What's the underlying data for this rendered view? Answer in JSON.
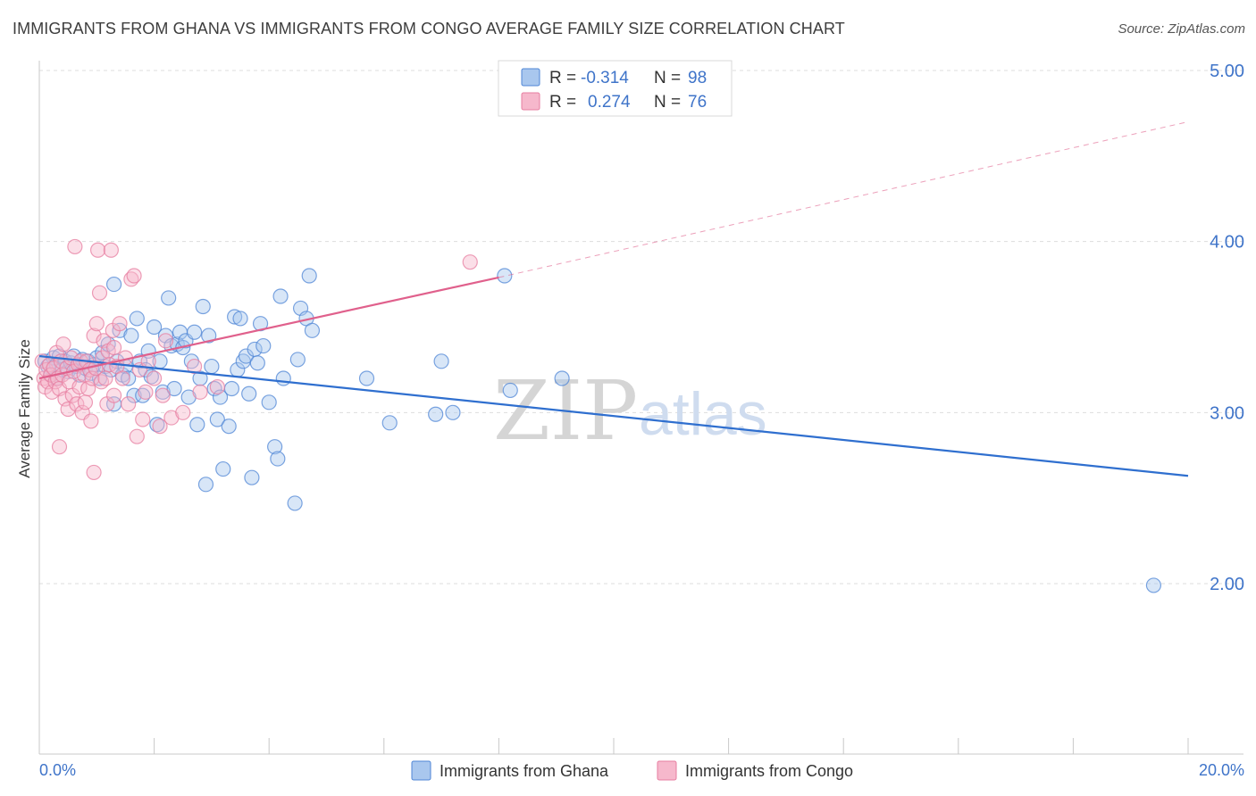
{
  "title": "IMMIGRANTS FROM GHANA VS IMMIGRANTS FROM CONGO AVERAGE FAMILY SIZE CORRELATION CHART",
  "source": "Source: ZipAtlas.com",
  "watermark": {
    "zip": "ZIP",
    "atlas": "atlas"
  },
  "legend_box": {
    "rows": [
      {
        "r_label": "R =",
        "r_value": "-0.314",
        "n_label": "N =",
        "n_value": "98"
      },
      {
        "r_label": "R =",
        "r_value": "0.274",
        "n_label": "N =",
        "n_value": "76"
      }
    ]
  },
  "colors": {
    "ghana_fill": "#a9c7ee",
    "ghana_stroke": "#4f86d6",
    "ghana_line": "#2f6fcf",
    "congo_fill": "#f6b8cc",
    "congo_stroke": "#e77ea0",
    "congo_line": "#e0608c",
    "axis_label": "#3f74c9",
    "grid": "#dddddd"
  },
  "chart_data": {
    "type": "scatter",
    "title": "IMMIGRANTS FROM GHANA VS IMMIGRANTS FROM CONGO AVERAGE FAMILY SIZE CORRELATION CHART",
    "xlabel": "",
    "ylabel": "Average Family Size",
    "xlim": [
      0,
      20
    ],
    "ylim": [
      1.0,
      5.15
    ],
    "x_tick_labels": [
      "0.0%",
      "20.0%"
    ],
    "y_ticks": [
      2.0,
      3.0,
      4.0,
      5.0
    ],
    "y_tick_labels": [
      "2.00",
      "3.00",
      "4.00",
      "5.00"
    ],
    "grid": true,
    "legend_position": "bottom",
    "series": [
      {
        "name": "Immigrants from Ghana",
        "points": [
          [
            0.1,
            3.3
          ],
          [
            0.15,
            3.27
          ],
          [
            0.2,
            3.22
          ],
          [
            0.25,
            3.32
          ],
          [
            0.3,
            3.28
          ],
          [
            0.3,
            3.2
          ],
          [
            0.35,
            3.33
          ],
          [
            0.4,
            3.25
          ],
          [
            0.45,
            3.3
          ],
          [
            0.5,
            3.24
          ],
          [
            0.55,
            3.29
          ],
          [
            0.6,
            3.33
          ],
          [
            0.65,
            3.27
          ],
          [
            0.7,
            3.22
          ],
          [
            0.75,
            3.31
          ],
          [
            0.8,
            3.26
          ],
          [
            0.85,
            3.3
          ],
          [
            0.9,
            3.23
          ],
          [
            0.95,
            3.28
          ],
          [
            1.0,
            3.32
          ],
          [
            1.05,
            3.2
          ],
          [
            1.1,
            3.35
          ],
          [
            1.15,
            3.27
          ],
          [
            1.2,
            3.4
          ],
          [
            1.25,
            3.25
          ],
          [
            1.3,
            3.05
          ],
          [
            1.3,
            3.75
          ],
          [
            1.35,
            3.3
          ],
          [
            1.4,
            3.48
          ],
          [
            1.45,
            3.22
          ],
          [
            1.5,
            3.27
          ],
          [
            1.55,
            3.2
          ],
          [
            1.6,
            3.45
          ],
          [
            1.65,
            3.1
          ],
          [
            1.7,
            3.55
          ],
          [
            1.75,
            3.3
          ],
          [
            1.8,
            3.1
          ],
          [
            1.85,
            3.25
          ],
          [
            1.9,
            3.36
          ],
          [
            1.95,
            3.21
          ],
          [
            2.0,
            3.5
          ],
          [
            2.05,
            2.93
          ],
          [
            2.1,
            3.3
          ],
          [
            2.15,
            3.12
          ],
          [
            2.2,
            3.45
          ],
          [
            2.25,
            3.67
          ],
          [
            2.3,
            3.39
          ],
          [
            2.35,
            3.14
          ],
          [
            2.4,
            3.4
          ],
          [
            2.45,
            3.47
          ],
          [
            2.5,
            3.38
          ],
          [
            2.55,
            3.42
          ],
          [
            2.6,
            3.09
          ],
          [
            2.65,
            3.3
          ],
          [
            2.7,
            3.47
          ],
          [
            2.75,
            2.93
          ],
          [
            2.8,
            3.2
          ],
          [
            2.85,
            3.62
          ],
          [
            2.9,
            2.58
          ],
          [
            2.95,
            3.45
          ],
          [
            3.0,
            3.27
          ],
          [
            3.05,
            3.14
          ],
          [
            3.1,
            2.96
          ],
          [
            3.15,
            3.09
          ],
          [
            3.2,
            2.67
          ],
          [
            3.3,
            2.92
          ],
          [
            3.35,
            3.14
          ],
          [
            3.4,
            3.56
          ],
          [
            3.45,
            3.25
          ],
          [
            3.5,
            3.55
          ],
          [
            3.55,
            3.3
          ],
          [
            3.6,
            3.33
          ],
          [
            3.65,
            3.11
          ],
          [
            3.7,
            2.62
          ],
          [
            3.75,
            3.37
          ],
          [
            3.8,
            3.29
          ],
          [
            3.85,
            3.52
          ],
          [
            3.9,
            3.39
          ],
          [
            4.0,
            3.06
          ],
          [
            4.1,
            2.8
          ],
          [
            4.15,
            2.73
          ],
          [
            4.2,
            3.68
          ],
          [
            4.25,
            3.2
          ],
          [
            4.45,
            2.47
          ],
          [
            4.5,
            3.31
          ],
          [
            4.55,
            3.61
          ],
          [
            4.65,
            3.55
          ],
          [
            4.7,
            3.8
          ],
          [
            4.75,
            3.48
          ],
          [
            5.7,
            3.2
          ],
          [
            6.1,
            2.94
          ],
          [
            6.9,
            2.99
          ],
          [
            7.0,
            3.3
          ],
          [
            7.2,
            3.0
          ],
          [
            8.1,
            3.8
          ],
          [
            8.2,
            3.13
          ],
          [
            9.1,
            3.2
          ],
          [
            19.4,
            1.99
          ]
        ]
      },
      {
        "name": "Immigrants from Congo",
        "points": [
          [
            0.05,
            3.3
          ],
          [
            0.08,
            3.2
          ],
          [
            0.1,
            3.15
          ],
          [
            0.12,
            3.25
          ],
          [
            0.15,
            3.18
          ],
          [
            0.18,
            3.28
          ],
          [
            0.2,
            3.22
          ],
          [
            0.22,
            3.12
          ],
          [
            0.25,
            3.26
          ],
          [
            0.28,
            3.18
          ],
          [
            0.3,
            3.35
          ],
          [
            0.32,
            3.2
          ],
          [
            0.35,
            3.14
          ],
          [
            0.38,
            3.3
          ],
          [
            0.4,
            3.22
          ],
          [
            0.42,
            3.4
          ],
          [
            0.45,
            3.08
          ],
          [
            0.48,
            3.26
          ],
          [
            0.5,
            3.02
          ],
          [
            0.52,
            3.18
          ],
          [
            0.55,
            3.32
          ],
          [
            0.58,
            3.1
          ],
          [
            0.6,
            3.24
          ],
          [
            0.62,
            3.97
          ],
          [
            0.65,
            3.05
          ],
          [
            0.68,
            3.28
          ],
          [
            0.7,
            3.15
          ],
          [
            0.72,
            3.3
          ],
          [
            0.75,
            3.0
          ],
          [
            0.78,
            3.22
          ],
          [
            0.8,
            3.06
          ],
          [
            0.82,
            3.3
          ],
          [
            0.85,
            3.14
          ],
          [
            0.88,
            3.25
          ],
          [
            0.9,
            2.95
          ],
          [
            0.92,
            3.2
          ],
          [
            0.95,
            3.45
          ],
          [
            0.98,
            3.26
          ],
          [
            1.0,
            3.52
          ],
          [
            1.02,
            3.95
          ],
          [
            1.05,
            3.7
          ],
          [
            1.08,
            3.18
          ],
          [
            1.1,
            3.32
          ],
          [
            1.12,
            3.42
          ],
          [
            1.15,
            3.2
          ],
          [
            1.18,
            3.05
          ],
          [
            1.2,
            3.36
          ],
          [
            1.22,
            3.28
          ],
          [
            1.25,
            3.95
          ],
          [
            1.28,
            3.48
          ],
          [
            1.3,
            3.1
          ],
          [
            1.35,
            3.27
          ],
          [
            1.4,
            3.52
          ],
          [
            1.45,
            3.2
          ],
          [
            1.5,
            3.32
          ],
          [
            1.55,
            3.05
          ],
          [
            1.6,
            3.78
          ],
          [
            1.65,
            3.8
          ],
          [
            1.7,
            2.86
          ],
          [
            1.75,
            3.25
          ],
          [
            1.8,
            2.96
          ],
          [
            1.85,
            3.12
          ],
          [
            1.9,
            3.3
          ],
          [
            2.0,
            3.2
          ],
          [
            2.1,
            2.92
          ],
          [
            2.15,
            3.1
          ],
          [
            2.2,
            3.42
          ],
          [
            2.3,
            2.97
          ],
          [
            2.5,
            3.0
          ],
          [
            2.7,
            3.27
          ],
          [
            2.8,
            3.12
          ],
          [
            0.35,
            2.8
          ],
          [
            0.95,
            2.65
          ],
          [
            1.3,
            3.38
          ],
          [
            3.1,
            3.15
          ],
          [
            7.5,
            3.88
          ]
        ]
      }
    ],
    "trendlines": [
      {
        "series": "Immigrants from Ghana",
        "x": [
          0.0,
          20.0
        ],
        "y": [
          3.33,
          2.63
        ],
        "style": "solid"
      },
      {
        "series": "Immigrants from Congo",
        "x": [
          0.0,
          8.0
        ],
        "y": [
          3.2,
          3.79
        ],
        "style": "solid"
      },
      {
        "series": "Immigrants from Congo",
        "x": [
          8.0,
          20.0
        ],
        "y": [
          3.79,
          4.7
        ],
        "style": "dashed"
      }
    ]
  }
}
